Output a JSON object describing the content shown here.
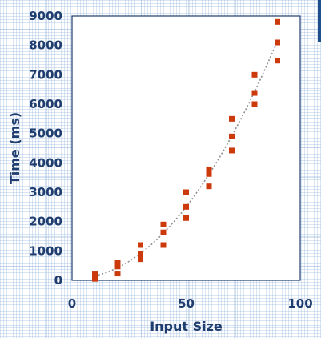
{
  "chart_data": {
    "type": "scatter",
    "xlabel": "Input Size",
    "ylabel": "Time (ms)",
    "xlim": [
      0,
      100
    ],
    "ylim": [
      0,
      9000
    ],
    "x_ticks": [
      0,
      50,
      100
    ],
    "y_ticks": [
      0,
      1000,
      2000,
      3000,
      4000,
      5000,
      6000,
      7000,
      8000,
      9000
    ],
    "grid": false,
    "legend": "none",
    "colors": {
      "points": "#cc3a0c",
      "axis": "#1f3d6e",
      "trendline": "#909090"
    },
    "trendline": {
      "style": "dotted",
      "shape": "quadratic"
    },
    "points": [
      {
        "x": 10,
        "y": 50
      },
      {
        "x": 10,
        "y": 150
      },
      {
        "x": 10,
        "y": 230
      },
      {
        "x": 20,
        "y": 230
      },
      {
        "x": 20,
        "y": 470
      },
      {
        "x": 20,
        "y": 600
      },
      {
        "x": 30,
        "y": 720
      },
      {
        "x": 30,
        "y": 900
      },
      {
        "x": 30,
        "y": 1200
      },
      {
        "x": 40,
        "y": 1200
      },
      {
        "x": 40,
        "y": 1630
      },
      {
        "x": 40,
        "y": 1900
      },
      {
        "x": 50,
        "y": 2120
      },
      {
        "x": 50,
        "y": 2500
      },
      {
        "x": 50,
        "y": 3000
      },
      {
        "x": 60,
        "y": 3200
      },
      {
        "x": 60,
        "y": 3620
      },
      {
        "x": 60,
        "y": 3780
      },
      {
        "x": 70,
        "y": 4420
      },
      {
        "x": 70,
        "y": 4900
      },
      {
        "x": 70,
        "y": 5500
      },
      {
        "x": 80,
        "y": 6000
      },
      {
        "x": 80,
        "y": 6380
      },
      {
        "x": 80,
        "y": 7000
      },
      {
        "x": 90,
        "y": 7480
      },
      {
        "x": 90,
        "y": 8100
      },
      {
        "x": 90,
        "y": 8800
      }
    ]
  }
}
